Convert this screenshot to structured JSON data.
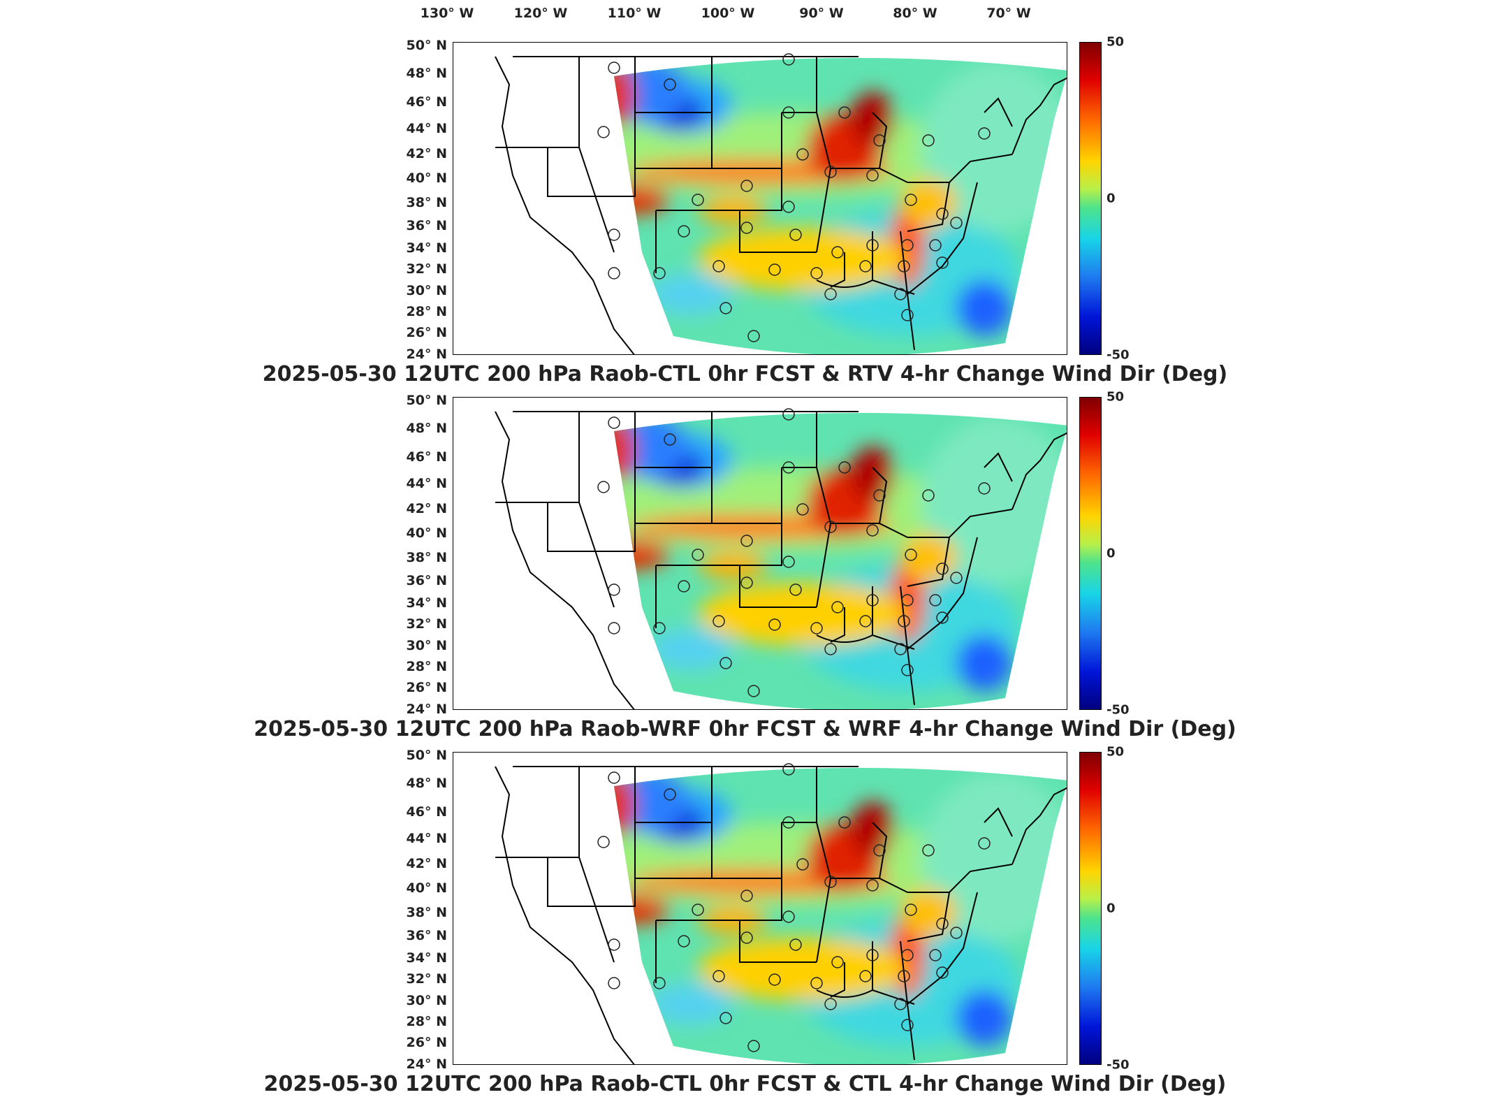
{
  "lon_labels": [
    "130° W",
    "120° W",
    "110° W",
    "100° W",
    "90° W",
    "80° W",
    "70° W"
  ],
  "lat_labels": [
    "50° N",
    "48° N",
    "46° N",
    "44° N",
    "42° N",
    "40° N",
    "38° N",
    "36° N",
    "34° N",
    "32° N",
    "30° N",
    "28° N",
    "26° N",
    "24° N"
  ],
  "colorbar": {
    "max_label": "50",
    "mid_label": "0",
    "min_label": "-50",
    "colors_high_to_low": [
      "#7f0000",
      "#ff6a00",
      "#ffd400",
      "#4ee38c",
      "#18d4e8",
      "#1f7cf0",
      "#00007f"
    ]
  },
  "panels": [
    {
      "title": "2025-05-30 12UTC 200 hPa Raob-CTL 0hr FCST & RTV 4-hr Change Wind Dir (Deg)"
    },
    {
      "title": "2025-05-30 12UTC 200 hPa Raob-WRF 0hr FCST & WRF 4-hr Change Wind Dir (Deg)"
    },
    {
      "title": "2025-05-30 12UTC 200 hPa Raob-CTL 0hr FCST & CTL 4-hr Change Wind Dir (Deg)"
    }
  ],
  "units": "Deg",
  "level": "200 hPa",
  "valid_time": "2025-05-30 12UTC"
}
